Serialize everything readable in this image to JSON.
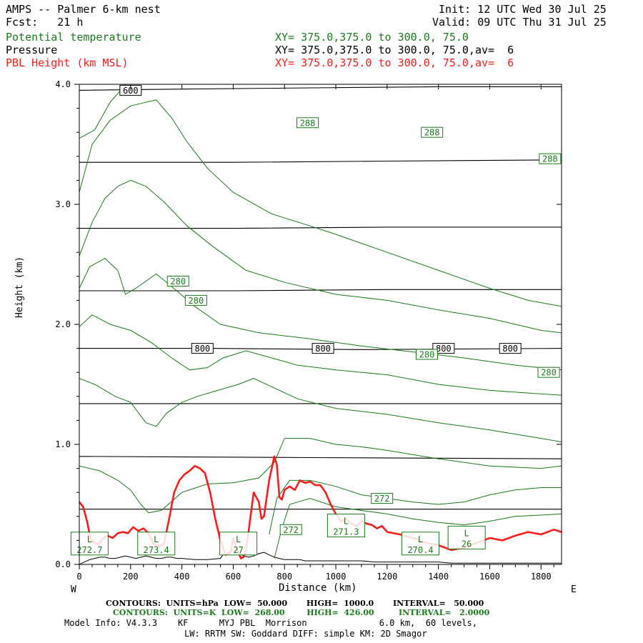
{
  "header": {
    "title": "AMPS -- Palmer 6-km nest",
    "fcst": "Fcst:   21 h",
    "init": "Init: 12 UTC Wed 30 Jul 25",
    "valid": "Valid: 09 UTC Thu 31 Jul 25",
    "field1_name": "Potential temperature",
    "field1_xy": "XY= 375.0,375.0 to 300.0, 75.0",
    "field2_name": "Pressure",
    "field2_xy": "XY= 375.0,375.0 to 300.0, 75.0,av=  6",
    "field3_name": "PBL Height (km MSL)",
    "field3_xy": "XY= 375.0,375.0 to 300.0, 75.0,av=  6"
  },
  "footer": {
    "line1": "CONTOURS:  UNITS=hPa  LOW=  50.000       HIGH=  1000.0       INTERVAL=   50.000",
    "line2": "CONTOURS:  UNITS=K  LOW=  268.00        HIGH=  426.00         INTERVAL=   2.0000",
    "line3": "Model Info: V4.3.3    KF      MYJ PBL  Morrison              6.0 km,  60 levels,",
    "line4": "LW: RRTM SW: Goddard DIFF: simple KM: 2D Smagor"
  },
  "colors": {
    "theta": "#1b7a1b",
    "pressure": "#000000",
    "pbl": "#ff1a1a"
  },
  "chart_data": {
    "type": "line",
    "xlabel": "Distance (km)",
    "ylabel": "Height (km)",
    "xlim": [
      0,
      1880
    ],
    "ylim": [
      0,
      4.0
    ],
    "x_ticks": [
      0,
      200,
      400,
      600,
      800,
      1000,
      1200,
      1400,
      1600,
      1800
    ],
    "y_ticks": [
      0.0,
      1.0,
      2.0,
      3.0,
      4.0
    ],
    "y_tick_labels": [
      "0.0",
      "1.0",
      "2.0",
      "3.0",
      "4.0"
    ],
    "left_end_label": "W",
    "right_end_label": "E",
    "pressure_contours": [
      {
        "hPa": 600,
        "label": "600",
        "points": [
          [
            0,
            3.95
          ],
          [
            400,
            3.96
          ],
          [
            900,
            3.97
          ],
          [
            1400,
            3.98
          ],
          [
            1880,
            3.98
          ]
        ]
      },
      {
        "hPa": 650,
        "label": "",
        "points": [
          [
            0,
            3.35
          ],
          [
            600,
            3.35
          ],
          [
            1200,
            3.36
          ],
          [
            1880,
            3.37
          ]
        ]
      },
      {
        "hPa": 700,
        "label": "",
        "points": [
          [
            0,
            2.8
          ],
          [
            600,
            2.8
          ],
          [
            1200,
            2.81
          ],
          [
            1880,
            2.81
          ]
        ]
      },
      {
        "hPa": 750,
        "label": "",
        "points": [
          [
            0,
            2.28
          ],
          [
            600,
            2.28
          ],
          [
            1200,
            2.29
          ],
          [
            1880,
            2.29
          ]
        ]
      },
      {
        "hPa": 800,
        "label": "800",
        "points": [
          [
            0,
            1.8
          ],
          [
            500,
            1.8
          ],
          [
            1100,
            1.79
          ],
          [
            1880,
            1.8
          ]
        ]
      },
      {
        "hPa": 850,
        "label": "",
        "points": [
          [
            0,
            1.34
          ],
          [
            900,
            1.34
          ],
          [
            1880,
            1.34
          ]
        ]
      },
      {
        "hPa": 900,
        "label": "",
        "points": [
          [
            0,
            0.9
          ],
          [
            900,
            0.89
          ],
          [
            1880,
            0.88
          ]
        ]
      },
      {
        "hPa": 950,
        "label": "",
        "points": [
          [
            0,
            0.46
          ],
          [
            900,
            0.46
          ],
          [
            1880,
            0.46
          ]
        ]
      }
    ],
    "pressure_labels": [
      {
        "text": "600",
        "x": 200,
        "y": 3.95
      },
      {
        "text": "800",
        "x": 480,
        "y": 1.8
      },
      {
        "text": "800",
        "x": 950,
        "y": 1.8
      },
      {
        "text": "800",
        "x": 1420,
        "y": 1.8
      },
      {
        "text": "800",
        "x": 1680,
        "y": 1.8
      }
    ],
    "theta_contours": [
      {
        "points": [
          [
            0,
            3.55
          ],
          [
            60,
            3.62
          ],
          [
            120,
            3.85
          ],
          [
            170,
            3.97
          ],
          [
            180,
            4.0
          ]
        ]
      },
      {
        "points": [
          [
            0,
            3.1
          ],
          [
            50,
            3.5
          ],
          [
            120,
            3.7
          ],
          [
            200,
            3.82
          ],
          [
            300,
            3.87
          ],
          [
            360,
            3.72
          ],
          [
            420,
            3.52
          ],
          [
            500,
            3.3
          ],
          [
            600,
            3.1
          ],
          [
            750,
            2.92
          ],
          [
            900,
            2.82
          ],
          [
            1000,
            2.75
          ],
          [
            1200,
            2.6
          ],
          [
            1400,
            2.45
          ],
          [
            1600,
            2.3
          ],
          [
            1750,
            2.2
          ],
          [
            1880,
            2.15
          ]
        ]
      },
      {
        "points": [
          [
            0,
            2.57
          ],
          [
            50,
            2.85
          ],
          [
            100,
            3.05
          ],
          [
            150,
            3.15
          ],
          [
            200,
            3.2
          ],
          [
            260,
            3.15
          ],
          [
            330,
            3.02
          ],
          [
            420,
            2.82
          ],
          [
            520,
            2.65
          ],
          [
            650,
            2.45
          ],
          [
            800,
            2.35
          ],
          [
            1000,
            2.25
          ],
          [
            1200,
            2.2
          ],
          [
            1400,
            2.12
          ],
          [
            1600,
            2.05
          ],
          [
            1800,
            1.95
          ],
          [
            1880,
            1.93
          ]
        ]
      },
      {
        "points": [
          [
            0,
            2.3
          ],
          [
            40,
            2.48
          ],
          [
            100,
            2.55
          ],
          [
            150,
            2.45
          ],
          [
            180,
            2.25
          ],
          [
            220,
            2.3
          ],
          [
            300,
            2.42
          ],
          [
            380,
            2.28
          ],
          [
            450,
            2.15
          ],
          [
            550,
            2.0
          ],
          [
            700,
            1.93
          ],
          [
            900,
            1.88
          ],
          [
            1100,
            1.82
          ],
          [
            1300,
            1.77
          ],
          [
            1500,
            1.72
          ],
          [
            1700,
            1.66
          ],
          [
            1880,
            1.62
          ]
        ]
      },
      {
        "points": [
          [
            0,
            1.98
          ],
          [
            50,
            2.08
          ],
          [
            120,
            2.0
          ],
          [
            200,
            1.95
          ],
          [
            280,
            1.85
          ],
          [
            360,
            1.72
          ],
          [
            430,
            1.62
          ],
          [
            500,
            1.64
          ],
          [
            560,
            1.72
          ],
          [
            650,
            1.78
          ],
          [
            750,
            1.72
          ],
          [
            850,
            1.66
          ],
          [
            1000,
            1.62
          ],
          [
            1200,
            1.58
          ],
          [
            1400,
            1.5
          ],
          [
            1600,
            1.45
          ],
          [
            1800,
            1.42
          ],
          [
            1880,
            1.41
          ]
        ]
      },
      {
        "points": [
          [
            0,
            1.55
          ],
          [
            60,
            1.5
          ],
          [
            140,
            1.4
          ],
          [
            200,
            1.35
          ],
          [
            260,
            1.18
          ],
          [
            300,
            1.15
          ],
          [
            340,
            1.26
          ],
          [
            400,
            1.35
          ],
          [
            460,
            1.4
          ],
          [
            540,
            1.45
          ],
          [
            620,
            1.5
          ],
          [
            680,
            1.55
          ],
          [
            750,
            1.48
          ],
          [
            850,
            1.38
          ],
          [
            1000,
            1.3
          ],
          [
            1200,
            1.25
          ],
          [
            1400,
            1.18
          ],
          [
            1600,
            1.12
          ],
          [
            1800,
            1.05
          ],
          [
            1880,
            1.02
          ]
        ]
      },
      {
        "points": [
          [
            0,
            0.82
          ],
          [
            80,
            0.78
          ],
          [
            150,
            0.7
          ],
          [
            200,
            0.62
          ],
          [
            240,
            0.5
          ],
          [
            270,
            0.43
          ],
          [
            320,
            0.45
          ],
          [
            400,
            0.6
          ],
          [
            500,
            0.67
          ],
          [
            600,
            0.68
          ],
          [
            700,
            0.72
          ],
          [
            760,
            0.85
          ],
          [
            800,
            1.05
          ],
          [
            900,
            1.05
          ],
          [
            1000,
            1.0
          ],
          [
            1100,
            0.98
          ],
          [
            1200,
            0.95
          ],
          [
            1400,
            0.88
          ],
          [
            1600,
            0.82
          ],
          [
            1800,
            0.8
          ],
          [
            1880,
            0.82
          ]
        ]
      },
      {
        "points": [
          [
            740,
            0.25
          ],
          [
            770,
            0.55
          ],
          [
            820,
            0.7
          ],
          [
            900,
            0.7
          ],
          [
            1000,
            0.65
          ],
          [
            1100,
            0.58
          ],
          [
            1200,
            0.55
          ],
          [
            1300,
            0.52
          ],
          [
            1400,
            0.5
          ],
          [
            1500,
            0.52
          ],
          [
            1600,
            0.58
          ],
          [
            1700,
            0.62
          ],
          [
            1800,
            0.64
          ],
          [
            1880,
            0.64
          ]
        ]
      },
      {
        "points": [
          [
            760,
            0.05
          ],
          [
            790,
            0.3
          ],
          [
            820,
            0.5
          ],
          [
            900,
            0.55
          ],
          [
            1000,
            0.48
          ],
          [
            1100,
            0.45
          ],
          [
            1200,
            0.42
          ],
          [
            1300,
            0.38
          ],
          [
            1400,
            0.35
          ],
          [
            1500,
            0.33
          ],
          [
            1600,
            0.36
          ],
          [
            1700,
            0.4
          ],
          [
            1880,
            0.42
          ]
        ]
      }
    ],
    "theta_labels": [
      {
        "text": "288",
        "x": 890,
        "y": 3.68
      },
      {
        "text": "288",
        "x": 1375,
        "y": 3.6
      },
      {
        "text": "288",
        "x": 1835,
        "y": 3.38
      },
      {
        "text": "280",
        "x": 385,
        "y": 2.36
      },
      {
        "text": "280",
        "x": 455,
        "y": 2.2
      },
      {
        "text": "280",
        "x": 1355,
        "y": 1.75
      },
      {
        "text": "280",
        "x": 1830,
        "y": 1.6
      },
      {
        "text": "272",
        "x": 1180,
        "y": 0.55
      },
      {
        "text": "272",
        "x": 825,
        "y": 0.29
      }
    ],
    "minima": [
      {
        "mark": "L",
        "value": "272.7",
        "x": 40,
        "y": 0.15
      },
      {
        "mark": "L",
        "value": "273.4",
        "x": 300,
        "y": 0.15
      },
      {
        "mark": "L",
        "value": "27",
        "x": 620,
        "y": 0.15
      },
      {
        "mark": "L",
        "value": "271.3",
        "x": 1040,
        "y": 0.3
      },
      {
        "mark": "L",
        "value": "270.4",
        "x": 1330,
        "y": 0.15
      },
      {
        "mark": "L",
        "value": "26",
        "x": 1510,
        "y": 0.2
      }
    ],
    "series": [
      {
        "name": "PBL Height (km MSL)",
        "x": [
          0,
          15,
          30,
          45,
          60,
          75,
          90,
          110,
          130,
          150,
          170,
          190,
          210,
          230,
          250,
          270,
          290,
          310,
          330,
          350,
          370,
          390,
          410,
          430,
          450,
          470,
          490,
          510,
          530,
          550,
          570,
          590,
          600,
          610,
          620,
          630,
          640,
          650,
          660,
          680,
          700,
          710,
          720,
          730,
          740,
          750,
          760,
          770,
          780,
          790,
          800,
          820,
          840,
          860,
          880,
          900,
          920,
          940,
          960,
          980,
          1000,
          1020,
          1040,
          1060,
          1080,
          1100,
          1120,
          1140,
          1160,
          1180,
          1200,
          1250,
          1300,
          1350,
          1400,
          1450,
          1500,
          1550,
          1600,
          1650,
          1700,
          1750,
          1800,
          1850,
          1880
        ],
        "y": [
          0.52,
          0.48,
          0.36,
          0.2,
          0.18,
          0.17,
          0.21,
          0.24,
          0.22,
          0.26,
          0.27,
          0.26,
          0.31,
          0.28,
          0.3,
          0.26,
          0.17,
          0.15,
          0.17,
          0.38,
          0.6,
          0.7,
          0.75,
          0.78,
          0.82,
          0.8,
          0.76,
          0.6,
          0.38,
          0.2,
          0.08,
          0.1,
          0.22,
          0.15,
          0.1,
          0.05,
          0.06,
          0.12,
          0.28,
          0.6,
          0.52,
          0.38,
          0.4,
          0.55,
          0.7,
          0.8,
          0.9,
          0.83,
          0.56,
          0.54,
          0.62,
          0.65,
          0.62,
          0.7,
          0.68,
          0.69,
          0.66,
          0.66,
          0.6,
          0.5,
          0.42,
          0.36,
          0.38,
          0.34,
          0.32,
          0.36,
          0.34,
          0.33,
          0.3,
          0.32,
          0.27,
          0.25,
          0.22,
          0.18,
          0.16,
          0.12,
          0.14,
          0.18,
          0.22,
          0.2,
          0.24,
          0.27,
          0.25,
          0.29,
          0.27
        ]
      }
    ],
    "terrain": {
      "x": [
        0,
        20,
        40,
        60,
        80,
        100,
        120,
        140,
        160,
        180,
        200,
        220,
        240,
        260,
        280,
        300,
        320,
        340,
        360,
        380,
        400,
        450,
        500,
        550,
        560,
        580,
        600,
        620,
        640,
        660,
        680,
        700,
        720,
        740,
        760,
        780,
        800,
        820,
        840,
        860,
        880,
        900,
        950,
        1000,
        1050,
        1100,
        1150,
        1200,
        1250,
        1300,
        1350,
        1400,
        1450,
        1500,
        1550,
        1600,
        1650,
        1700,
        1750,
        1800,
        1850,
        1880
      ],
      "y": [
        0,
        0.02,
        0.04,
        0.05,
        0.06,
        0.06,
        0.05,
        0.05,
        0.06,
        0.07,
        0.06,
        0.05,
        0.06,
        0.07,
        0.06,
        0.05,
        0.05,
        0.06,
        0.06,
        0.05,
        0.05,
        0.04,
        0.04,
        0.05,
        0.08,
        0.1,
        0.12,
        0.1,
        0.07,
        0.06,
        0.07,
        0.09,
        0.1,
        0.08,
        0.06,
        0.05,
        0.04,
        0.04,
        0.04,
        0.04,
        0.03,
        0.03,
        0.03,
        0.03,
        0.03,
        0.03,
        0.02,
        0.02,
        0.02,
        0.02,
        0.02,
        0.02,
        0.01,
        0.01,
        0.01,
        0.01,
        0.01,
        0.01,
        0.01,
        0.01,
        0.01,
        0.01
      ]
    }
  }
}
